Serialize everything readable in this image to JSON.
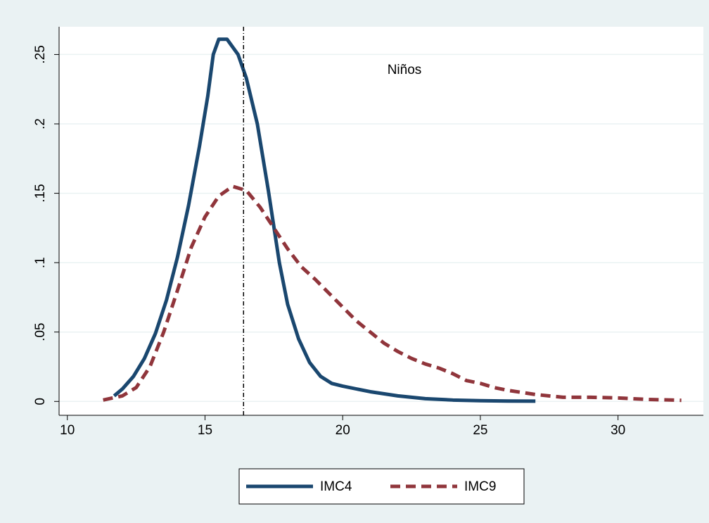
{
  "chart_data": {
    "type": "line",
    "annotation": "Niños",
    "xlim": [
      9.7,
      33.1
    ],
    "ylim": [
      -0.01,
      0.27
    ],
    "xticks": [
      10,
      15,
      20,
      25,
      30
    ],
    "yticks": [
      0,
      {
        "value": 0.05,
        "label": ".05"
      },
      {
        "value": 0.1,
        "label": ".1"
      },
      {
        "value": 0.15,
        "label": ".15"
      },
      {
        "value": 0.2,
        "label": ".2"
      },
      {
        "value": 0.25,
        "label": ".25"
      }
    ],
    "grid": true,
    "xline": 16.4,
    "legend": "bottom",
    "series": [
      {
        "name": "IMC4",
        "color": "#1a476f",
        "dashed": false,
        "x": [
          11.7,
          12.0,
          12.4,
          12.8,
          13.2,
          13.6,
          14.0,
          14.4,
          14.8,
          15.1,
          15.3,
          15.5,
          15.8,
          16.2,
          16.5,
          16.9,
          17.3,
          17.7,
          18.0,
          18.4,
          18.8,
          19.2,
          19.6,
          20.0,
          21.0,
          22.0,
          23.0,
          24.0,
          25.0,
          26.0,
          27.0
        ],
        "values": [
          0.004,
          0.009,
          0.018,
          0.031,
          0.049,
          0.073,
          0.104,
          0.141,
          0.184,
          0.22,
          0.25,
          0.261,
          0.261,
          0.25,
          0.233,
          0.2,
          0.152,
          0.1,
          0.07,
          0.045,
          0.028,
          0.018,
          0.013,
          0.011,
          0.007,
          0.004,
          0.002,
          0.001,
          0.0005,
          0.0003,
          0.0002
        ]
      },
      {
        "name": "IMC9",
        "color": "#90353b",
        "dashed": true,
        "x": [
          11.3,
          12.0,
          12.5,
          13.0,
          13.5,
          14.0,
          14.5,
          15.0,
          15.5,
          16.0,
          16.5,
          17.0,
          17.5,
          18.0,
          18.5,
          19.0,
          19.5,
          20.0,
          20.5,
          21.0,
          21.5,
          22.0,
          22.5,
          23.0,
          23.5,
          24.0,
          24.5,
          25.0,
          25.5,
          26.0,
          27.0,
          28.0,
          29.0,
          30.0,
          31.0,
          32.3
        ],
        "values": [
          0.001,
          0.004,
          0.01,
          0.025,
          0.05,
          0.08,
          0.111,
          0.133,
          0.148,
          0.155,
          0.152,
          0.14,
          0.125,
          0.11,
          0.097,
          0.088,
          0.078,
          0.068,
          0.058,
          0.05,
          0.042,
          0.036,
          0.031,
          0.027,
          0.024,
          0.02,
          0.015,
          0.013,
          0.01,
          0.008,
          0.005,
          0.003,
          0.003,
          0.0025,
          0.0015,
          0.0008
        ]
      }
    ]
  }
}
